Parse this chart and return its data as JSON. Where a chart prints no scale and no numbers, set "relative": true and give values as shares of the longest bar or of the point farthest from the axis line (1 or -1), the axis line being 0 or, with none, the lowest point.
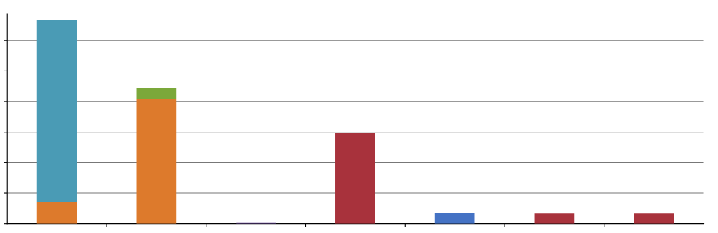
{
  "chart_data": {
    "type": "bar",
    "relative": true,
    "stacked": true,
    "grid": "y",
    "tick_labels": false,
    "categories": [
      null,
      null,
      null,
      null,
      null,
      null,
      null
    ],
    "series": [
      {
        "colors": [
          "#dd7a2c",
          "#dd7a2c",
          "#5d3f8a",
          "#a8323c",
          "#4472c4",
          "#a8323c",
          "#a8323c"
        ],
        "values": [
          0.108,
          0.612,
          0.007,
          0.446,
          0.054,
          0.05,
          0.05
        ]
      },
      {
        "colors": [
          "#4a9bb5",
          "#7ba83a",
          null,
          null,
          null,
          null,
          null
        ],
        "values": [
          0.892,
          0.054,
          null,
          null,
          null,
          null,
          null
        ]
      }
    ]
  }
}
